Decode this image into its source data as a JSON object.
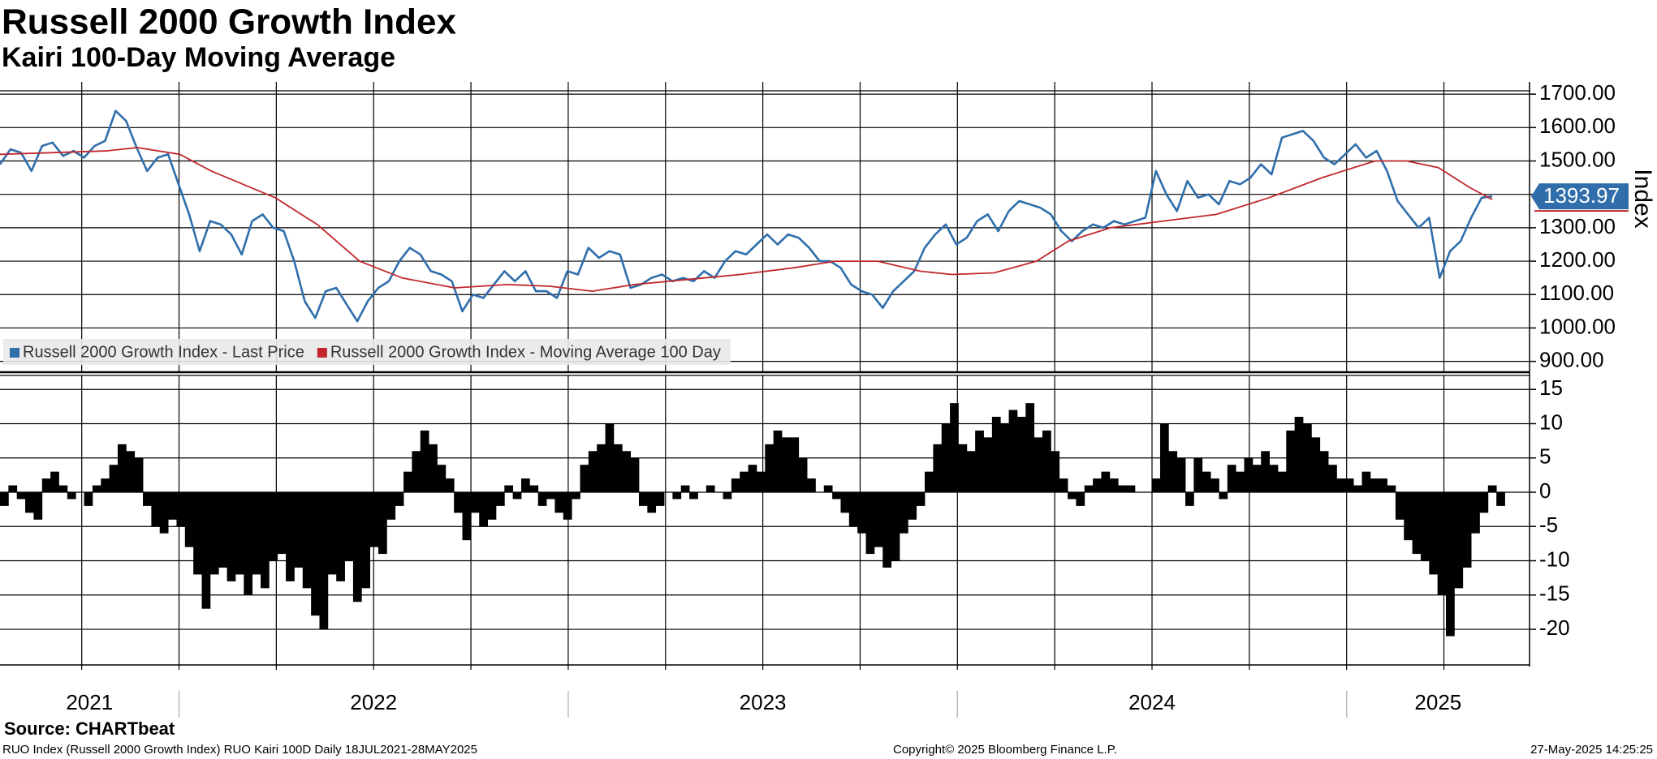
{
  "title": "Russell 2000 Growth Index",
  "subtitle": "Kairi 100-Day Moving Average",
  "chart_data": [
    {
      "type": "line",
      "y_label": "Index",
      "legend": "bottom-left",
      "grid": true,
      "xlim": [
        2021.54,
        2025.47
      ],
      "xgrid": [
        2021.75,
        2022,
        2022.25,
        2022.5,
        2022.75,
        2023,
        2023.25,
        2023.5,
        2023.75,
        2024,
        2024.25,
        2024.5,
        2024.75,
        2025,
        2025.25
      ],
      "ylim": [
        870,
        1710
      ],
      "yticks": [
        {
          "value": 900,
          "label": "900.00"
        },
        {
          "value": 1000,
          "label": "1000.00"
        },
        {
          "value": 1100,
          "label": "1100.00"
        },
        {
          "value": 1200,
          "label": "1200.00"
        },
        {
          "value": 1300,
          "label": "1300.00"
        },
        {
          "value": 1400,
          "label": "1400.00"
        },
        {
          "value": 1500,
          "label": "1500.00"
        },
        {
          "value": 1600,
          "label": "1600.00"
        },
        {
          "value": 1700,
          "label": "1700.00"
        }
      ],
      "series": [
        {
          "name": "Russell 2000 Growth Index - Last Price",
          "color": "#2f6eab",
          "last_label": "1393.97",
          "x": [
            2021.54,
            2021.567,
            2021.594,
            2021.621,
            2021.648,
            2021.675,
            2021.702,
            2021.729,
            2021.756,
            2021.783,
            2021.81,
            2021.837,
            2021.864,
            2021.891,
            2021.918,
            2021.945,
            2021.972,
            2021.999,
            2022.026,
            2022.053,
            2022.08,
            2022.107,
            2022.134,
            2022.161,
            2022.188,
            2022.215,
            2022.242,
            2022.269,
            2022.296,
            2022.323,
            2022.35,
            2022.377,
            2022.404,
            2022.431,
            2022.458,
            2022.485,
            2022.512,
            2022.539,
            2022.566,
            2022.593,
            2022.62,
            2022.647,
            2022.674,
            2022.701,
            2022.728,
            2022.755,
            2022.782,
            2022.809,
            2022.836,
            2022.863,
            2022.89,
            2022.917,
            2022.944,
            2022.971,
            2022.998,
            2023.025,
            2023.052,
            2023.079,
            2023.106,
            2023.133,
            2023.16,
            2023.187,
            2023.214,
            2023.241,
            2023.268,
            2023.295,
            2023.322,
            2023.349,
            2023.376,
            2023.403,
            2023.43,
            2023.457,
            2023.484,
            2023.511,
            2023.538,
            2023.565,
            2023.592,
            2023.619,
            2023.646,
            2023.673,
            2023.7,
            2023.727,
            2023.754,
            2023.781,
            2023.808,
            2023.835,
            2023.862,
            2023.889,
            2023.916,
            2023.943,
            2023.97,
            2023.997,
            2024.024,
            2024.051,
            2024.078,
            2024.105,
            2024.132,
            2024.159,
            2024.186,
            2024.213,
            2024.24,
            2024.267,
            2024.294,
            2024.321,
            2024.348,
            2024.375,
            2024.402,
            2024.429,
            2024.456,
            2024.483,
            2024.51,
            2024.537,
            2024.564,
            2024.591,
            2024.618,
            2024.645,
            2024.672,
            2024.699,
            2024.726,
            2024.753,
            2024.78,
            2024.807,
            2024.834,
            2024.861,
            2024.888,
            2024.915,
            2024.942,
            2024.969,
            2024.996,
            2025.023,
            2025.05,
            2025.077,
            2025.104,
            2025.131,
            2025.158,
            2025.185,
            2025.212,
            2025.239,
            2025.266,
            2025.293,
            2025.32,
            2025.347,
            2025.374
          ],
          "values": [
            1490,
            1535,
            1525,
            1470,
            1545,
            1555,
            1515,
            1530,
            1510,
            1545,
            1560,
            1650,
            1620,
            1540,
            1470,
            1510,
            1520,
            1430,
            1340,
            1230,
            1320,
            1310,
            1280,
            1220,
            1320,
            1340,
            1300,
            1290,
            1200,
            1080,
            1030,
            1110,
            1120,
            1070,
            1020,
            1080,
            1120,
            1140,
            1200,
            1240,
            1220,
            1170,
            1160,
            1140,
            1050,
            1100,
            1090,
            1130,
            1170,
            1140,
            1170,
            1110,
            1110,
            1090,
            1170,
            1160,
            1240,
            1210,
            1230,
            1220,
            1120,
            1130,
            1150,
            1160,
            1140,
            1150,
            1140,
            1170,
            1150,
            1200,
            1230,
            1220,
            1250,
            1280,
            1250,
            1280,
            1270,
            1240,
            1200,
            1200,
            1180,
            1130,
            1110,
            1100,
            1060,
            1110,
            1140,
            1170,
            1240,
            1280,
            1310,
            1250,
            1270,
            1320,
            1340,
            1290,
            1350,
            1380,
            1370,
            1360,
            1340,
            1290,
            1260,
            1290,
            1310,
            1300,
            1320,
            1310,
            1320,
            1330,
            1470,
            1400,
            1350,
            1440,
            1390,
            1400,
            1370,
            1440,
            1430,
            1450,
            1490,
            1460,
            1570,
            1580,
            1590,
            1560,
            1510,
            1490,
            1520,
            1550,
            1510,
            1530,
            1470,
            1380,
            1340,
            1300,
            1330,
            1150,
            1230,
            1260,
            1330,
            1390,
            1393.97
          ]
        },
        {
          "name": "Russell 2000 Growth Index - Moving Average 100 Day",
          "color": "#c1272d",
          "x": [
            2021.54,
            2021.812,
            2021.893,
            2022.002,
            2022.083,
            2022.247,
            2022.355,
            2022.464,
            2022.573,
            2022.708,
            2022.844,
            2022.953,
            2023.062,
            2023.17,
            2023.306,
            2023.442,
            2023.578,
            2023.687,
            2023.795,
            2023.904,
            2023.986,
            2024.094,
            2024.203,
            2024.285,
            2024.393,
            2024.529,
            2024.665,
            2024.801,
            2024.937,
            2025.073,
            2025.154,
            2025.236,
            2025.317,
            2025.374
          ],
          "values": [
            1520,
            1530,
            1540,
            1520,
            1470,
            1390,
            1310,
            1200,
            1150,
            1120,
            1130,
            1125,
            1110,
            1130,
            1145,
            1160,
            1180,
            1200,
            1200,
            1170,
            1160,
            1165,
            1200,
            1260,
            1300,
            1320,
            1340,
            1390,
            1450,
            1500,
            1500,
            1480,
            1420,
            1385
          ]
        }
      ]
    },
    {
      "type": "bar",
      "color": "#000000",
      "grid": true,
      "xlim": [
        2021.54,
        2025.47
      ],
      "xgrid": [
        2021.75,
        2022,
        2022.25,
        2022.5,
        2022.75,
        2023,
        2023.25,
        2023.5,
        2023.75,
        2024,
        2024.25,
        2024.5,
        2024.75,
        2025,
        2025.25
      ],
      "xticks": [
        2021,
        2022,
        2023,
        2024,
        2025
      ],
      "ylim": [
        -25.2,
        16.8
      ],
      "yticks": [
        -20,
        -15,
        -10,
        -5,
        0,
        5,
        10,
        15
      ],
      "x": [
        2021.54,
        2021.5616,
        2021.5832,
        2021.6048,
        2021.6264,
        2021.648,
        2021.6696,
        2021.6912,
        2021.7128,
        2021.7344,
        2021.756,
        2021.7776,
        2021.7992,
        2021.8208,
        2021.8424,
        2021.864,
        2021.8856,
        2021.9072,
        2021.9288,
        2021.9504,
        2021.972,
        2021.9936,
        2022.0152,
        2022.0368,
        2022.0584,
        2022.08,
        2022.1016,
        2022.1232,
        2022.1448,
        2022.1664,
        2022.188,
        2022.2096,
        2022.2312,
        2022.2528,
        2022.2744,
        2022.296,
        2022.3176,
        2022.3392,
        2022.3608,
        2022.3824,
        2022.404,
        2022.4256,
        2022.4472,
        2022.4688,
        2022.4904,
        2022.512,
        2022.5336,
        2022.5552,
        2022.5768,
        2022.5984,
        2022.62,
        2022.6416,
        2022.6632,
        2022.6848,
        2022.7064,
        2022.728,
        2022.7496,
        2022.7712,
        2022.7928,
        2022.8144,
        2022.836,
        2022.8576,
        2022.8792,
        2022.9008,
        2022.9224,
        2022.944,
        2022.9656,
        2022.9872,
        2023.0088,
        2023.0304,
        2023.052,
        2023.0736,
        2023.0952,
        2023.1168,
        2023.1384,
        2023.16,
        2023.1816,
        2023.2032,
        2023.2248,
        2023.2464,
        2023.268,
        2023.2896,
        2023.3112,
        2023.3328,
        2023.3544,
        2023.376,
        2023.3976,
        2023.4192,
        2023.4408,
        2023.4624,
        2023.484,
        2023.5056,
        2023.5272,
        2023.5488,
        2023.5704,
        2023.592,
        2023.6136,
        2023.6352,
        2023.6568,
        2023.6784,
        2023.7,
        2023.7216,
        2023.7432,
        2023.7648,
        2023.7864,
        2023.808,
        2023.8296,
        2023.8512,
        2023.8728,
        2023.8944,
        2023.916,
        2023.9376,
        2023.9592,
        2023.9808,
        2024.0024,
        2024.024,
        2024.0456,
        2024.0672,
        2024.0888,
        2024.1104,
        2024.132,
        2024.1536,
        2024.1752,
        2024.1968,
        2024.2184,
        2024.24,
        2024.2616,
        2024.2832,
        2024.3048,
        2024.3264,
        2024.348,
        2024.3696,
        2024.3912,
        2024.4128,
        2024.4344,
        2024.456,
        2024.4776,
        2024.4992,
        2024.5208,
        2024.5424,
        2024.564,
        2024.5856,
        2024.6072,
        2024.6288,
        2024.6504,
        2024.672,
        2024.6936,
        2024.7152,
        2024.7368,
        2024.7584,
        2024.78,
        2024.8016,
        2024.8232,
        2024.8448,
        2024.8664,
        2024.888,
        2024.9096,
        2024.9312,
        2024.9528,
        2024.9744,
        2024.996,
        2025.0176,
        2025.0392,
        2025.0608,
        2025.0824,
        2025.104,
        2025.1256,
        2025.1472,
        2025.1688,
        2025.1904,
        2025.212,
        2025.2336,
        2025.2552,
        2025.2768,
        2025.2984,
        2025.32,
        2025.3416,
        2025.3632,
        2025.3848
      ],
      "values": [
        -2,
        1,
        -1,
        -3,
        -4,
        2,
        3,
        1,
        -1,
        0,
        -2,
        1,
        2,
        4,
        7,
        6,
        5,
        -2,
        -5,
        -6,
        -4,
        -5,
        -8,
        -12,
        -17,
        -12,
        -11,
        -13,
        -12,
        -15,
        -12,
        -14,
        -10,
        -9,
        -13,
        -11,
        -14,
        -18,
        -20,
        -12,
        -13,
        -10,
        -16,
        -14,
        -8,
        -9,
        -4,
        -2,
        3,
        6,
        9,
        7,
        4,
        2,
        -3,
        -7,
        -3,
        -5,
        -4,
        -2,
        1,
        -1,
        2,
        1,
        -2,
        -1,
        -3,
        -4,
        -1,
        4,
        6,
        7,
        10,
        7,
        6,
        5,
        -2,
        -3,
        -2,
        0,
        -1,
        1,
        -1,
        0,
        1,
        0,
        -1,
        2,
        3,
        4,
        3,
        7,
        9,
        8,
        8,
        5,
        2,
        0,
        1,
        -1,
        -3,
        -5,
        -6,
        -9,
        -8,
        -11,
        -10,
        -6,
        -4,
        -2,
        3,
        7,
        10,
        13,
        7,
        6,
        9,
        8,
        11,
        10,
        12,
        11,
        13,
        8,
        9,
        6,
        2,
        -1,
        -2,
        1,
        2,
        3,
        2,
        1,
        1,
        0,
        0,
        2,
        10,
        6,
        5,
        -2,
        5,
        3,
        2,
        -1,
        4,
        3,
        5,
        4,
        6,
        4,
        3,
        9,
        11,
        10,
        8,
        6,
        4,
        2,
        2,
        1,
        3,
        2,
        2,
        1,
        -4,
        -7,
        -9,
        -10,
        -12,
        -15,
        -21,
        -14,
        -11,
        -6,
        -3,
        1,
        -2
      ]
    }
  ],
  "footer": {
    "source": "Source: CHARTbeat",
    "description": "RUO Index (Russell 2000 Growth Index) RUO Kairi 100D  Daily 18JUL2021-28MAY2025",
    "copyright": "Copyright© 2025 Bloomberg Finance L.P.",
    "timestamp": "27-May-2025 14:25:25"
  }
}
